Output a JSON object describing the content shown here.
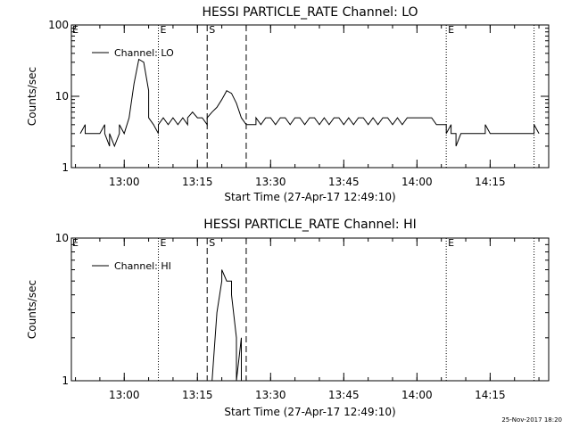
{
  "chart_data": [
    {
      "type": "line",
      "title": "HESSI PARTICLE_RATE Channel: LO",
      "xlabel": "Start Time (27-Apr-17 12:49:10)",
      "ylabel": "Counts/sec",
      "yscale": "log",
      "xlim": [
        "12:49:10",
        "14:27:00"
      ],
      "ylim": [
        1,
        100
      ],
      "xticks": [
        "13:00",
        "13:15",
        "13:30",
        "13:45",
        "14:00",
        "14:15"
      ],
      "yticks": [
        "1",
        "10",
        "100"
      ],
      "legend": "top-left",
      "markers": [
        {
          "time": "13:07",
          "style": "dotted",
          "label": "E"
        },
        {
          "time": "13:17",
          "style": "dashed",
          "label": "S"
        },
        {
          "time": "13:25",
          "style": "dashed",
          "label": ""
        },
        {
          "time": "14:06",
          "style": "dotted",
          "label": "E"
        },
        {
          "time": "14:24",
          "style": "dotted",
          "label": ""
        }
      ],
      "series": [
        {
          "name": "Channel: LO",
          "points": [
            [
              "12:51",
              "3"
            ],
            [
              "12:52",
              "4"
            ],
            [
              "12:52",
              "3"
            ],
            [
              "12:53",
              "3"
            ],
            [
              "12:54",
              "3"
            ],
            [
              "12:55",
              "3"
            ],
            [
              "12:56",
              "4"
            ],
            [
              "12:56",
              "3"
            ],
            [
              "12:57",
              "2"
            ],
            [
              "12:57",
              "3"
            ],
            [
              "12:58",
              "2"
            ],
            [
              "12:59",
              "3"
            ],
            [
              "12:59",
              "4"
            ],
            [
              "13:00",
              "3"
            ],
            [
              "13:01",
              "5"
            ],
            [
              "13:02",
              "15"
            ],
            [
              "13:03",
              "33"
            ],
            [
              "13:04",
              "30"
            ],
            [
              "13:05",
              "12"
            ],
            [
              "13:05",
              "5"
            ],
            [
              "13:06",
              "4"
            ],
            [
              "13:07",
              "3"
            ],
            [
              "13:07",
              "4"
            ],
            [
              "13:08",
              "5"
            ],
            [
              "13:09",
              "4"
            ],
            [
              "13:10",
              "5"
            ],
            [
              "13:11",
              "4"
            ],
            [
              "13:12",
              "5"
            ],
            [
              "13:13",
              "4"
            ],
            [
              "13:13",
              "5"
            ],
            [
              "13:14",
              "6"
            ],
            [
              "13:15",
              "5"
            ],
            [
              "13:16",
              "5"
            ],
            [
              "13:17",
              "4"
            ],
            [
              "13:17",
              "5"
            ],
            [
              "13:18",
              "6"
            ],
            [
              "13:19",
              "7"
            ],
            [
              "13:20",
              "9"
            ],
            [
              "13:21",
              "12"
            ],
            [
              "13:22",
              "11"
            ],
            [
              "13:23",
              "8"
            ],
            [
              "13:24",
              "5"
            ],
            [
              "13:25",
              "4"
            ],
            [
              "13:26",
              "4"
            ],
            [
              "13:27",
              "4"
            ],
            [
              "13:27",
              "5"
            ],
            [
              "13:28",
              "4"
            ],
            [
              "13:29",
              "5"
            ],
            [
              "13:30",
              "5"
            ],
            [
              "13:31",
              "4"
            ],
            [
              "13:32",
              "5"
            ],
            [
              "13:33",
              "5"
            ],
            [
              "13:34",
              "4"
            ],
            [
              "13:35",
              "5"
            ],
            [
              "13:36",
              "5"
            ],
            [
              "13:37",
              "4"
            ],
            [
              "13:38",
              "5"
            ],
            [
              "13:39",
              "5"
            ],
            [
              "13:40",
              "4"
            ],
            [
              "13:41",
              "5"
            ],
            [
              "13:42",
              "4"
            ],
            [
              "13:43",
              "5"
            ],
            [
              "13:44",
              "5"
            ],
            [
              "13:45",
              "4"
            ],
            [
              "13:46",
              "5"
            ],
            [
              "13:47",
              "4"
            ],
            [
              "13:48",
              "5"
            ],
            [
              "13:49",
              "5"
            ],
            [
              "13:50",
              "4"
            ],
            [
              "13:51",
              "5"
            ],
            [
              "13:52",
              "4"
            ],
            [
              "13:53",
              "5"
            ],
            [
              "13:54",
              "5"
            ],
            [
              "13:55",
              "4"
            ],
            [
              "13:56",
              "5"
            ],
            [
              "13:57",
              "4"
            ],
            [
              "13:58",
              "5"
            ],
            [
              "13:59",
              "5"
            ],
            [
              "14:00",
              "5"
            ],
            [
              "14:01",
              "5"
            ],
            [
              "14:02",
              "5"
            ],
            [
              "14:03",
              "5"
            ],
            [
              "14:04",
              "4"
            ],
            [
              "14:05",
              "4"
            ],
            [
              "14:06",
              "4"
            ],
            [
              "14:06",
              "3"
            ],
            [
              "14:07",
              "4"
            ],
            [
              "14:07",
              "3"
            ],
            [
              "14:08",
              "3"
            ],
            [
              "14:08",
              "2"
            ],
            [
              "14:09",
              "3"
            ],
            [
              "14:10",
              "3"
            ],
            [
              "14:11",
              "3"
            ],
            [
              "14:12",
              "3"
            ],
            [
              "14:13",
              "3"
            ],
            [
              "14:14",
              "3"
            ],
            [
              "14:14",
              "4"
            ],
            [
              "14:15",
              "3"
            ],
            [
              "14:16",
              "3"
            ],
            [
              "14:18",
              "3"
            ],
            [
              "14:20",
              "3"
            ],
            [
              "14:22",
              "3"
            ],
            [
              "14:24",
              "3"
            ],
            [
              "14:24",
              "4"
            ],
            [
              "14:25",
              "3"
            ]
          ]
        }
      ]
    },
    {
      "type": "line",
      "title": "HESSI PARTICLE_RATE Channel: HI",
      "xlabel": "Start Time (27-Apr-17 12:49:10)",
      "ylabel": "Counts/sec",
      "yscale": "log",
      "xlim": [
        "12:49:10",
        "14:27:00"
      ],
      "ylim": [
        1,
        10
      ],
      "xticks": [
        "13:00",
        "13:15",
        "13:30",
        "13:45",
        "14:00",
        "14:15"
      ],
      "yticks": [
        "1",
        "10"
      ],
      "legend": "top-left",
      "markers": [
        {
          "time": "13:07",
          "style": "dotted",
          "label": "E"
        },
        {
          "time": "13:17",
          "style": "dashed",
          "label": "S"
        },
        {
          "time": "13:25",
          "style": "dashed",
          "label": ""
        },
        {
          "time": "14:06",
          "style": "dotted",
          "label": "E"
        },
        {
          "time": "14:24",
          "style": "dotted",
          "label": ""
        }
      ],
      "series": [
        {
          "name": "Channel: HI",
          "points": [
            [
              "13:18",
              "1"
            ],
            [
              "13:19",
              "3"
            ],
            [
              "13:20",
              "5"
            ],
            [
              "13:20",
              "6"
            ],
            [
              "13:21",
              "5"
            ],
            [
              "13:22",
              "5"
            ],
            [
              "13:22",
              "4"
            ],
            [
              "13:23",
              "2"
            ],
            [
              "13:23",
              "1"
            ],
            [
              "13:24",
              "2"
            ],
            [
              "13:24",
              "1"
            ]
          ]
        }
      ]
    }
  ],
  "footer": {
    "timestamp": "25-Nov-2017 18:20"
  }
}
